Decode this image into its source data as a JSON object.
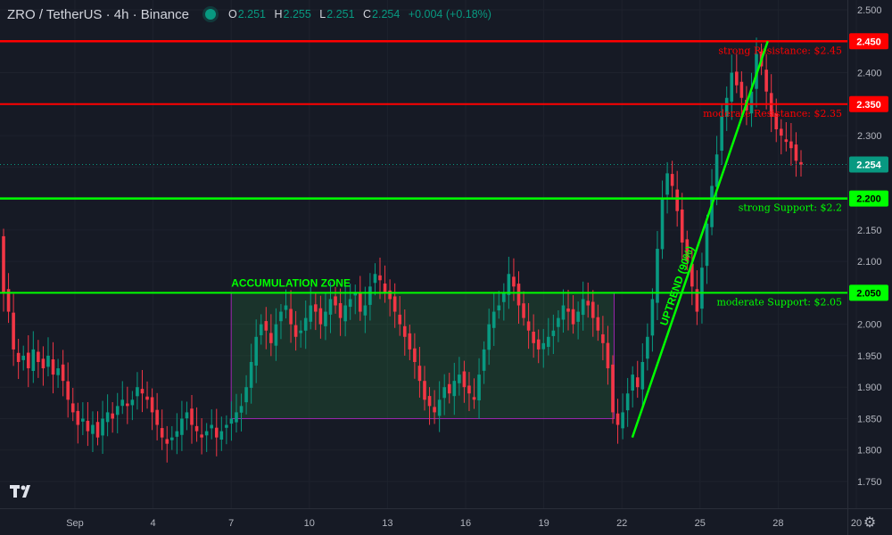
{
  "header": {
    "symbol": "ZRO / TetherUS · 4h · Binance",
    "open_label": "O",
    "open": "2.251",
    "high_label": "H",
    "high": "2.255",
    "low_label": "L",
    "low": "2.251",
    "close_label": "C",
    "close": "2.254",
    "change": "+0.004 (+0.18%)"
  },
  "colors": {
    "background": "#161a25",
    "up": "#089981",
    "down": "#f23645",
    "support": "#00ff00",
    "resistance": "#ff0000",
    "zone_border": "#9c27b0"
  },
  "icons": {
    "settings": "gear-icon",
    "logo": "tradingview-logo-icon"
  },
  "chart_data": {
    "type": "candlestick",
    "price_scale": {
      "range": [
        1.7,
        2.5
      ],
      "ticks": [
        "2.500",
        "2.450",
        "2.400",
        "2.350",
        "2.300",
        "2.250",
        "2.200",
        "2.150",
        "2.100",
        "2.050",
        "2.000",
        "1.950",
        "1.900",
        "1.850",
        "1.800",
        "1.750"
      ]
    },
    "time_axis": {
      "ticks": [
        {
          "label": "Sep",
          "day": 1
        },
        {
          "label": "4",
          "day": 4
        },
        {
          "label": "7",
          "day": 7
        },
        {
          "label": "10",
          "day": 10
        },
        {
          "label": "13",
          "day": 13
        },
        {
          "label": "16",
          "day": 16
        },
        {
          "label": "19",
          "day": 19
        },
        {
          "label": "22",
          "day": 22
        },
        {
          "label": "25",
          "day": 25
        },
        {
          "label": "28",
          "day": 28
        },
        {
          "label": "20",
          "day": 31
        }
      ]
    },
    "current_price": {
      "value": 2.254,
      "label": "2.254"
    },
    "levels": [
      {
        "name": "strong Resistance",
        "value": 2.45,
        "text": "strong Resistance: $2.45",
        "axis_label": "2.450",
        "color": "#ff0000"
      },
      {
        "name": "moderate Resistance",
        "value": 2.35,
        "text": "moderate Resistance: $2.35",
        "axis_label": "2.350",
        "color": "#ff0000"
      },
      {
        "name": "strong Support",
        "value": 2.2,
        "text": "strong Support: $2.2",
        "axis_label": "2.200",
        "color": "#00ff00"
      },
      {
        "name": "moderate Support",
        "value": 2.05,
        "text": "moderate Support: $2.05",
        "axis_label": "2.050",
        "color": "#00ff00"
      }
    ],
    "zone": {
      "label": "ACCUMULATION ZONE",
      "day_start": 7.0,
      "day_end": 21.7,
      "low": 1.85,
      "high": 2.05
    },
    "trendline": {
      "label": "UPTREND (90%)",
      "from": {
        "day": 22.4,
        "price": 1.82
      },
      "to": {
        "day": 27.6,
        "price": 2.45
      }
    },
    "closes": [
      2.05,
      2.02,
      1.96,
      1.94,
      1.95,
      1.93,
      1.96,
      1.94,
      1.93,
      1.95,
      1.92,
      1.93,
      1.91,
      1.88,
      1.86,
      1.84,
      1.85,
      1.83,
      1.84,
      1.82,
      1.85,
      1.86,
      1.85,
      1.87,
      1.88,
      1.87,
      1.88,
      1.9,
      1.89,
      1.88,
      1.86,
      1.84,
      1.82,
      1.81,
      1.82,
      1.83,
      1.85,
      1.86,
      1.84,
      1.83,
      1.82,
      1.83,
      1.84,
      1.82,
      1.83,
      1.84,
      1.85,
      1.86,
      1.87,
      1.9,
      1.94,
      1.98,
      2.0,
      1.99,
      1.97,
      2.0,
      2.02,
      2.03,
      2.0,
      1.98,
      1.99,
      2.01,
      2.03,
      2.02,
      2.0,
      2.02,
      2.04,
      2.03,
      2.01,
      2.03,
      2.04,
      2.05,
      2.02,
      2.03,
      2.06,
      2.08,
      2.07,
      2.05,
      2.04,
      2.02,
      2.0,
      1.98,
      1.96,
      1.94,
      1.91,
      1.88,
      1.87,
      1.86,
      1.88,
      1.9,
      1.89,
      1.91,
      1.92,
      1.9,
      1.89,
      1.88,
      1.92,
      1.96,
      2.0,
      2.02,
      2.03,
      2.05,
      2.08,
      2.06,
      2.03,
      2.01,
      1.99,
      1.97,
      1.96,
      1.97,
      1.98,
      1.99,
      2.01,
      2.03,
      2.02,
      2.0,
      2.02,
      2.04,
      2.03,
      2.01,
      1.99,
      1.97,
      1.93,
      1.86,
      1.84,
      1.86,
      1.89,
      1.92,
      1.9,
      1.94,
      1.98,
      2.04,
      2.12,
      2.2,
      2.24,
      2.22,
      2.18,
      2.13,
      2.1,
      2.06,
      2.02,
      2.09,
      2.16,
      2.22,
      2.27,
      2.33,
      2.36,
      2.4,
      2.38,
      2.36,
      2.34,
      2.37,
      2.43,
      2.41,
      2.37,
      2.33,
      2.31,
      2.3,
      2.29,
      2.28,
      2.26,
      2.254
    ]
  }
}
